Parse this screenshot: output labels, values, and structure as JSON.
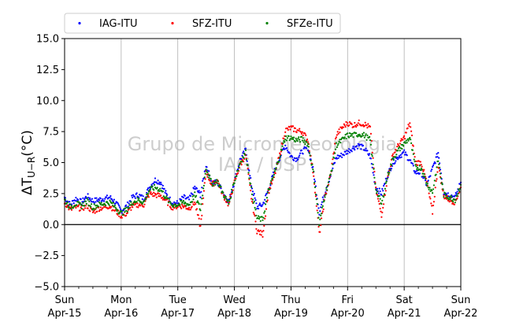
{
  "chart_data": {
    "type": "scatter",
    "ylabel": "ΔT_{U−R}(°C)",
    "ylim": [
      -5.0,
      15.0
    ],
    "xlim": [
      0,
      7
    ],
    "yticks": [
      "−5.0",
      "−2.5",
      "0.0",
      "2.5",
      "5.0",
      "7.5",
      "10.0",
      "12.5",
      "15.0"
    ],
    "yticks_values": [
      -5,
      -2.5,
      0,
      2.5,
      5,
      7.5,
      10,
      12.5,
      15
    ],
    "xticks": [
      {
        "day": "Sun",
        "date": "Apr-15"
      },
      {
        "day": "Mon",
        "date": "Apr-16"
      },
      {
        "day": "Tue",
        "date": "Apr-17"
      },
      {
        "day": "Wed",
        "date": "Apr-18"
      },
      {
        "day": "Thu",
        "date": "Apr-19"
      },
      {
        "day": "Fri",
        "date": "Apr-20"
      },
      {
        "day": "Sat",
        "date": "Apr-21"
      },
      {
        "day": "Sun",
        "date": "Apr-22"
      }
    ],
    "grid": "vertical",
    "reference_line": 0,
    "legend_position": "top",
    "watermark": [
      "Grupo de Micrometeorologia",
      "IAG / USP"
    ],
    "series": [
      {
        "name": "IAG-ITU",
        "color": "#0000ff",
        "x": [
          0,
          0.1,
          0.2,
          0.3,
          0.4,
          0.5,
          0.6,
          0.7,
          0.8,
          0.9,
          1.0,
          1.1,
          1.2,
          1.3,
          1.4,
          1.5,
          1.6,
          1.7,
          1.8,
          1.9,
          2.0,
          2.1,
          2.2,
          2.3,
          2.4,
          2.5,
          2.6,
          2.7,
          2.8,
          2.9,
          3.0,
          3.1,
          3.2,
          3.3,
          3.4,
          3.5,
          3.6,
          3.7,
          3.8,
          3.9,
          4.0,
          4.1,
          4.2,
          4.3,
          4.4,
          4.5,
          4.6,
          4.7,
          4.8,
          4.9,
          5.0,
          5.1,
          5.2,
          5.3,
          5.4,
          5.5,
          5.6,
          5.7,
          5.8,
          5.9,
          6.0,
          6.1,
          6.2,
          6.3,
          6.4,
          6.5,
          6.6,
          6.7,
          6.8,
          6.9,
          7.0
        ],
        "y": [
          2.2,
          1.6,
          2.1,
          1.8,
          2.3,
          1.9,
          2.0,
          2.1,
          2.2,
          1.8,
          1.1,
          1.5,
          2.2,
          2.4,
          2.1,
          3.0,
          3.6,
          3.4,
          2.4,
          1.8,
          1.7,
          2.2,
          2.0,
          3.0,
          2.4,
          4.8,
          3.4,
          3.4,
          2.6,
          1.8,
          3.5,
          5.2,
          6.0,
          3.2,
          1.4,
          1.6,
          2.8,
          4.2,
          5.4,
          6.4,
          5.5,
          5.3,
          5.9,
          6.2,
          4.2,
          1.0,
          2.6,
          4.0,
          5.4,
          5.6,
          5.9,
          6.2,
          6.4,
          6.1,
          5.5,
          3.0,
          2.5,
          3.9,
          5.0,
          5.5,
          5.8,
          5.2,
          4.2,
          4.2,
          3.2,
          4.5,
          5.8,
          2.6,
          2.4,
          2.2,
          3.4
        ]
      },
      {
        "name": "SFZ-ITU",
        "color": "#ff0000",
        "x": [
          0,
          0.1,
          0.2,
          0.3,
          0.4,
          0.5,
          0.6,
          0.7,
          0.8,
          0.9,
          1.0,
          1.1,
          1.2,
          1.3,
          1.4,
          1.5,
          1.6,
          1.7,
          1.8,
          1.9,
          2.0,
          2.1,
          2.2,
          2.3,
          2.4,
          2.5,
          2.6,
          2.7,
          2.8,
          2.9,
          3.0,
          3.1,
          3.2,
          3.3,
          3.4,
          3.5,
          3.6,
          3.7,
          3.8,
          3.9,
          4.0,
          4.1,
          4.2,
          4.3,
          4.4,
          4.5,
          4.6,
          4.7,
          4.8,
          4.9,
          5.0,
          5.1,
          5.2,
          5.3,
          5.4,
          5.5,
          5.6,
          5.7,
          5.8,
          5.9,
          6.0,
          6.1,
          6.2,
          6.3,
          6.4,
          6.5,
          6.6,
          6.7,
          6.8,
          6.9,
          7.0
        ],
        "y": [
          1.8,
          1.2,
          1.4,
          1.3,
          1.5,
          1.0,
          1.3,
          1.4,
          1.5,
          1.1,
          0.7,
          0.9,
          1.5,
          1.6,
          1.6,
          2.5,
          2.4,
          2.3,
          1.9,
          1.4,
          1.5,
          1.5,
          1.3,
          1.8,
          -0.2,
          4.3,
          3.2,
          3.6,
          2.4,
          1.6,
          3.4,
          4.8,
          5.6,
          2.2,
          -0.5,
          -0.8,
          2.6,
          3.8,
          5.6,
          7.6,
          7.8,
          7.6,
          7.5,
          6.8,
          4.0,
          -0.8,
          2.2,
          4.0,
          7.2,
          7.8,
          8.2,
          8.0,
          8.2,
          8.1,
          7.8,
          2.8,
          0.8,
          3.6,
          5.6,
          6.4,
          7.0,
          8.2,
          5.0,
          5.0,
          3.4,
          1.0,
          4.8,
          2.3,
          2.0,
          1.8,
          3.0
        ]
      },
      {
        "name": "SFZe-ITU",
        "color": "#008000",
        "x": [
          0,
          0.1,
          0.2,
          0.3,
          0.4,
          0.5,
          0.6,
          0.7,
          0.8,
          0.9,
          1.0,
          1.1,
          1.2,
          1.3,
          1.4,
          1.5,
          1.6,
          1.7,
          1.8,
          1.9,
          2.0,
          2.1,
          2.2,
          2.3,
          2.4,
          2.5,
          2.6,
          2.7,
          2.8,
          2.9,
          3.0,
          3.1,
          3.2,
          3.3,
          3.4,
          3.5,
          3.6,
          3.7,
          3.8,
          3.9,
          4.0,
          4.1,
          4.2,
          4.3,
          4.4,
          4.5,
          4.6,
          4.7,
          4.8,
          4.9,
          5.0,
          5.1,
          5.2,
          5.3,
          5.4,
          5.5,
          5.6,
          5.7,
          5.8,
          5.9,
          6.0,
          6.1,
          6.2,
          6.3,
          6.4,
          6.5,
          6.6,
          6.7,
          6.8,
          6.9,
          7.0
        ],
        "y": [
          2.0,
          1.4,
          1.7,
          1.5,
          1.9,
          1.4,
          1.6,
          1.7,
          1.8,
          1.4,
          0.9,
          1.2,
          1.8,
          2.0,
          1.8,
          2.8,
          3.0,
          2.8,
          2.1,
          1.6,
          1.6,
          1.8,
          1.6,
          2.4,
          1.2,
          4.6,
          3.3,
          3.5,
          2.5,
          1.7,
          3.5,
          5.0,
          5.8,
          2.8,
          0.5,
          0.4,
          2.7,
          4.0,
          5.5,
          7.0,
          7.0,
          6.8,
          6.9,
          6.5,
          4.1,
          0.0,
          2.4,
          4.0,
          6.4,
          6.8,
          7.2,
          7.2,
          7.3,
          7.2,
          6.8,
          2.9,
          1.6,
          3.8,
          5.3,
          6.0,
          6.5,
          7.0,
          4.6,
          4.6,
          3.3,
          2.6,
          5.2,
          2.4,
          2.2,
          2.0,
          3.2
        ]
      }
    ]
  }
}
